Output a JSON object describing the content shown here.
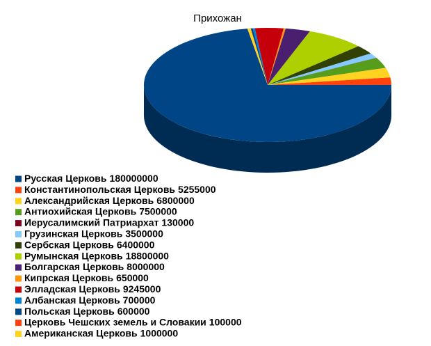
{
  "chart_data": {
    "type": "pie3d",
    "title": "Прихожан",
    "categories": [
      "Русская Церковь",
      "Константинопольская Церковь",
      "Александрийская Церковь",
      "Антиохийская Церковь",
      "Иерусалимский Патриархат",
      "Грузинская Церковь",
      "Сербская Церковь",
      "Румынская Церковь",
      "Болгарская Церковь",
      "Кипрская Церковь",
      "Элладская Церковь",
      "Албанская Церковь",
      "Польская Церковь",
      "Церковь Чешских земель и Словакии",
      "Американская Церковь"
    ],
    "values": [
      180000000,
      5255000,
      6800000,
      7500000,
      130000,
      3500000,
      6400000,
      18800000,
      8000000,
      650000,
      9245000,
      700000,
      600000,
      100000,
      1000000
    ],
    "colors": [
      "#004586",
      "#ff420e",
      "#ffd320",
      "#579d1c",
      "#7e0021",
      "#83caff",
      "#314004",
      "#aecf00",
      "#4b1f6f",
      "#ff950e",
      "#c5000b",
      "#0084d1",
      "#004586",
      "#ff420e",
      "#ffd320"
    ]
  }
}
